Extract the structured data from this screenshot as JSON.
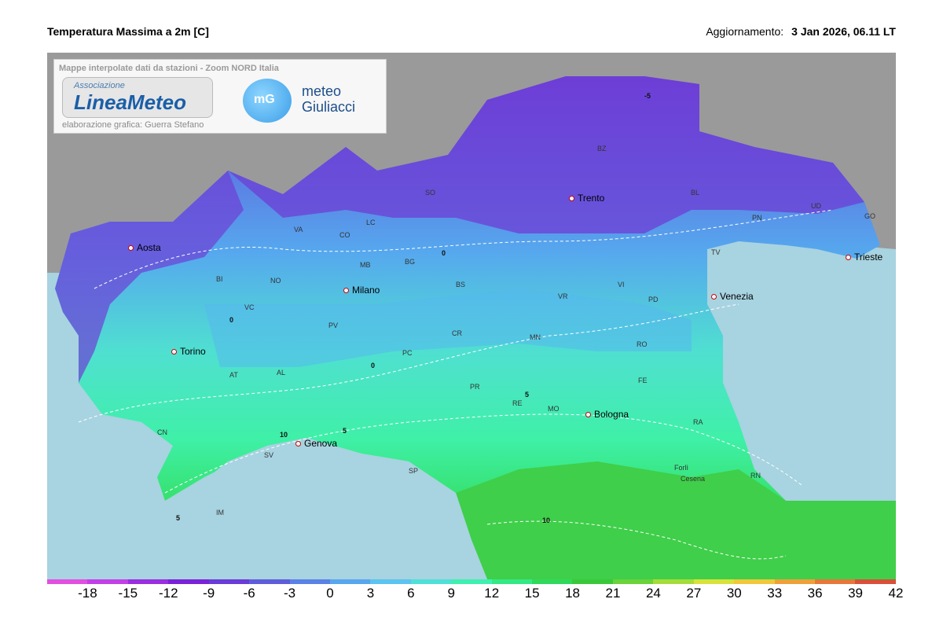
{
  "header": {
    "title": "Temperatura Massima a 2m [C]",
    "updated_label": "Aggiornamento:",
    "updated_value": "3 Jan 2026, 06.11 LT"
  },
  "credits": {
    "line1": "Mappe interpolate dati da stazioni - Zoom NORD Italia",
    "logo1_small": "Associazione",
    "logo1_big": "LineaMeteo",
    "logo2_mark": "mG",
    "logo2_word1": "meteo",
    "logo2_word2": "Giuliacci",
    "line2": "elaborazione grafica: Guerra Stefano"
  },
  "cities": [
    "Aosta",
    "Torino",
    "Milano",
    "Trento",
    "Venezia",
    "Trieste",
    "Genova",
    "Bologna"
  ],
  "provinces": [
    "VA",
    "CO",
    "LC",
    "SO",
    "BZ",
    "BL",
    "UD",
    "GO",
    "PN",
    "TV",
    "VI",
    "PD",
    "VR",
    "BS",
    "BG",
    "MB",
    "NO",
    "BI",
    "VC",
    "PV",
    "CR",
    "MN",
    "RO",
    "FE",
    "PC",
    "PR",
    "RE",
    "MO",
    "RA",
    "Forlì",
    "Cesena",
    "RN",
    "AL",
    "AT",
    "CN",
    "SV",
    "IM",
    "SP"
  ],
  "isotherm_labels": [
    "0",
    "5",
    "10",
    "-5"
  ],
  "colorbar": {
    "ticks": [
      "-18",
      "-15",
      "-12",
      "-9",
      "-6",
      "-3",
      "0",
      "3",
      "6",
      "9",
      "12",
      "15",
      "18",
      "21",
      "24",
      "27",
      "30",
      "33",
      "36",
      "39",
      "42"
    ],
    "min": -21,
    "max": 42,
    "colors": [
      "#e24fe0",
      "#c23fe8",
      "#9a2ee0",
      "#7a22d8",
      "#6a3bd6",
      "#5f5cdc",
      "#5a82e6",
      "#58a6ee",
      "#5bc4f0",
      "#4fe0d8",
      "#3ff0b0",
      "#34e884",
      "#2fd95a",
      "#3ac83a",
      "#6ad23a",
      "#a6dc3a",
      "#d8e23a",
      "#f0c83a",
      "#f0a03a",
      "#e8763a",
      "#d8503a"
    ]
  }
}
